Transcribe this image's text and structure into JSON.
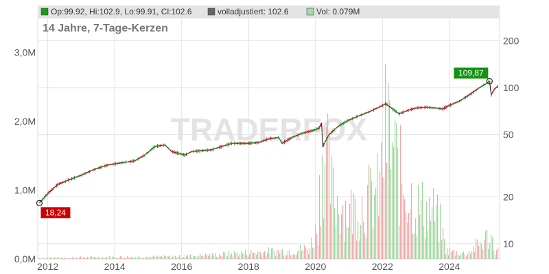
{
  "header": {
    "legend_ohlc": "Op:99.92, Hi:102.9, Lo:99.91, Cl:102.6",
    "legend_adjusted": "volladjustiert: 102.6",
    "legend_volume": "Vol: 0.079M",
    "colors": {
      "ohlc": "#1a9c1a",
      "adjusted": "#666666",
      "volume": "#a8d8a8"
    }
  },
  "chart_title": "14 Jahre, 7-Tage-Kerzen",
  "watermark": "TRADERFOX",
  "chart_data": {
    "type": "line",
    "x_range": [
      2011.7,
      2025.5
    ],
    "x_ticks": [
      2012,
      2014,
      2016,
      2018,
      2020,
      2022,
      2024
    ],
    "x_tick_labels": [
      "2012",
      "2014",
      "2016",
      "2018",
      "2020",
      "2022",
      "2024"
    ],
    "price_axis": {
      "scale": "log",
      "range": [
        8,
        280
      ],
      "ticks": [
        10,
        20,
        50,
        100,
        200
      ],
      "tick_labels": [
        "10",
        "20",
        "50",
        "100",
        "200"
      ]
    },
    "volume_axis": {
      "range": [
        0,
        3.5
      ],
      "ticks": [
        0,
        1,
        2,
        3
      ],
      "tick_labels": [
        "0,0M",
        "1,0M",
        "2,0M",
        "3,0M"
      ]
    },
    "price_series": {
      "x": [
        2011.75,
        2012.0,
        2012.3,
        2012.6,
        2013.0,
        2013.4,
        2013.8,
        2014.2,
        2014.6,
        2014.9,
        2015.2,
        2015.5,
        2015.7,
        2015.9,
        2016.1,
        2016.3,
        2016.6,
        2016.9,
        2017.2,
        2017.5,
        2017.8,
        2018.0,
        2018.3,
        2018.6,
        2018.9,
        2019.0,
        2019.3,
        2019.6,
        2019.9,
        2020.1,
        2020.18,
        2020.22,
        2020.4,
        2020.7,
        2021.0,
        2021.3,
        2021.6,
        2021.9,
        2022.1,
        2022.3,
        2022.5,
        2022.8,
        2023.0,
        2023.3,
        2023.6,
        2023.8,
        2024.0,
        2024.3,
        2024.6,
        2024.9,
        2025.1,
        2025.2,
        2025.25,
        2025.35,
        2025.45
      ],
      "y": [
        18.24,
        21,
        24,
        25.5,
        27.5,
        30,
        32,
        33,
        34,
        37,
        42,
        43,
        39,
        38,
        37,
        39,
        39.5,
        40,
        42,
        44,
        44,
        44,
        44.5,
        47,
        48,
        44,
        48,
        51,
        53,
        55,
        59,
        42,
        50,
        57,
        62,
        66,
        70,
        75,
        79,
        73,
        68,
        72,
        74,
        75,
        74,
        73,
        77,
        82,
        90,
        100,
        106,
        109.87,
        90,
        98,
        102.6
      ]
    },
    "volume_series": {
      "x": [
        2011.8,
        2013.0,
        2015.0,
        2016.0,
        2017.0,
        2018.0,
        2019.0,
        2019.8,
        2020.05,
        2020.2,
        2020.5,
        2021.0,
        2021.5,
        2021.9,
        2022.1,
        2022.5,
        2023.0,
        2023.5,
        2023.7,
        2023.9,
        2024.5,
        2025.2,
        2025.4
      ],
      "y": [
        0.02,
        0.03,
        0.04,
        0.05,
        0.08,
        0.12,
        0.15,
        0.2,
        0.6,
        2.3,
        1.2,
        0.9,
        1.1,
        1.3,
        2.5,
        1.6,
        1.0,
        0.9,
        0.7,
        0.15,
        0.1,
        0.45,
        0.15
      ]
    },
    "annotations": [
      {
        "label": "18,24",
        "x": 2011.75,
        "y": 18.24,
        "color": "#cc0000"
      },
      {
        "label": "109,87",
        "x": 2025.2,
        "y": 109.87,
        "color": "#149414"
      }
    ],
    "grid": true,
    "price_line_color": "#2a2a2a",
    "up_color": "#2aa02a",
    "down_color": "#cc2222",
    "volume_up_color": "#9fd89f",
    "volume_down_color": "#f0a8a8"
  }
}
